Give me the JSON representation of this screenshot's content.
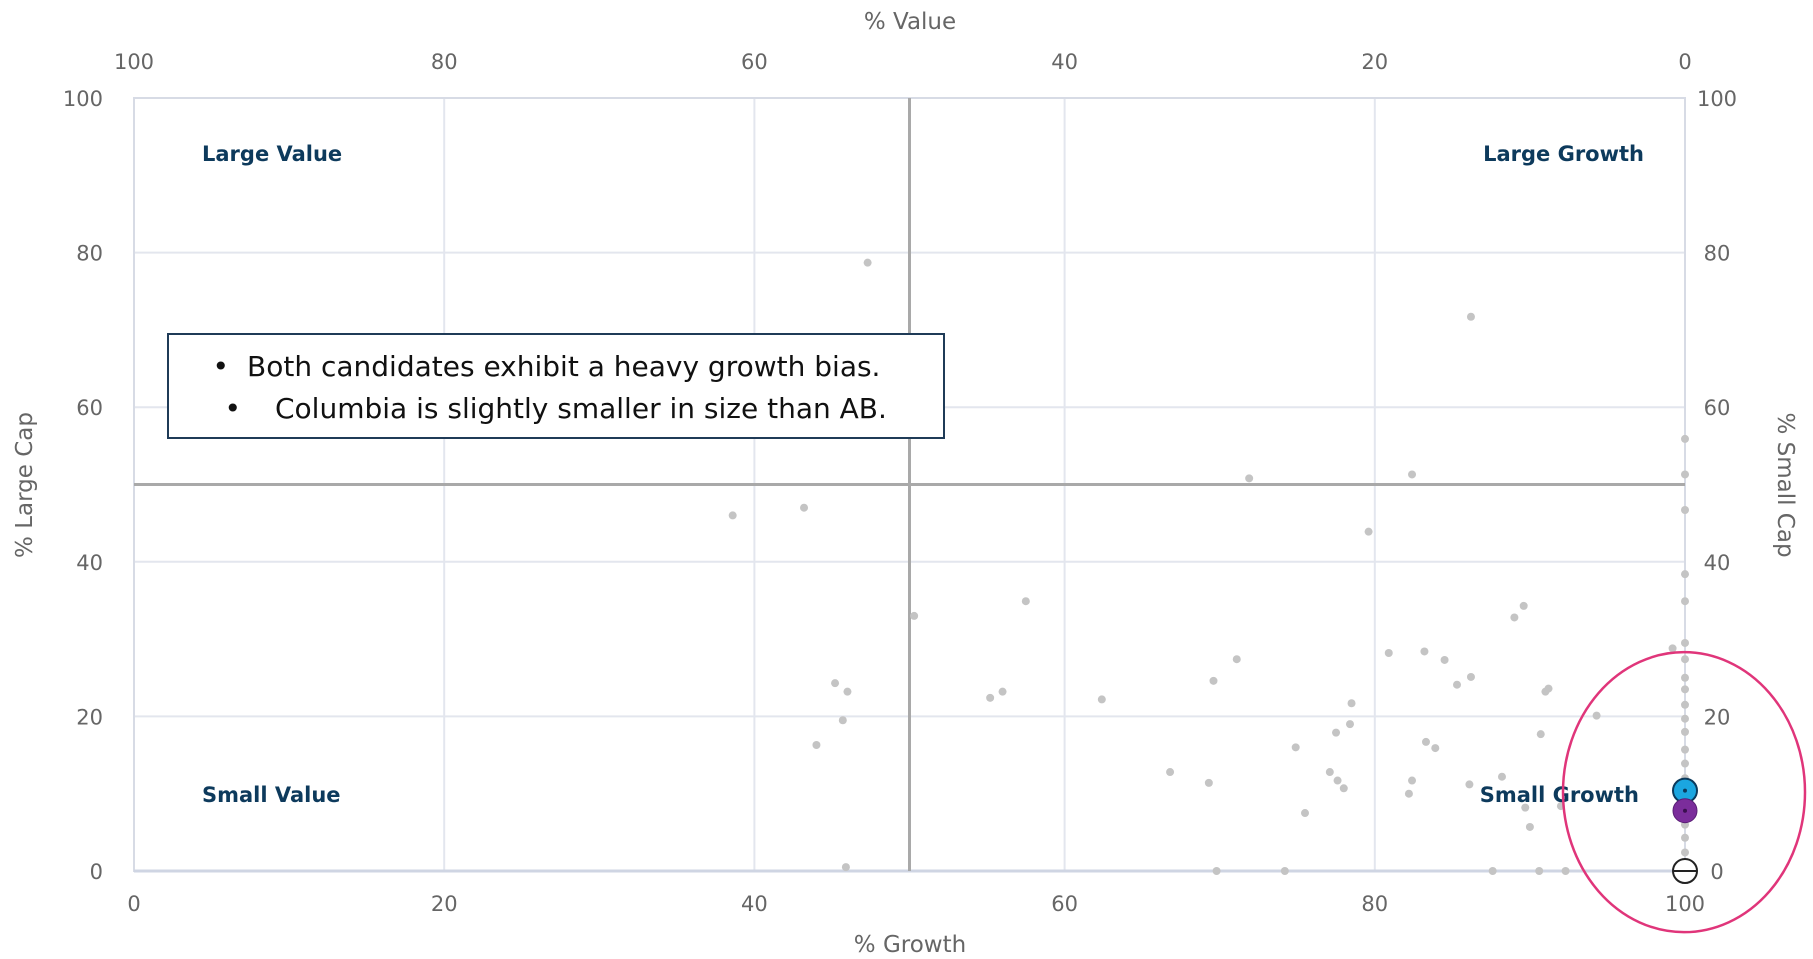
{
  "chart_data": {
    "type": "scatter",
    "xlabel_bottom": "% Growth",
    "xlabel_top": "% Value",
    "ylabel_left": "% Large Cap",
    "ylabel_right": "% Small Cap",
    "xlim": [
      0,
      100
    ],
    "ylim": [
      0,
      100
    ],
    "x_ticks": [
      "0",
      "20",
      "40",
      "60",
      "80",
      "100"
    ],
    "x_ticks_top": [
      "100",
      "80",
      "60",
      "40",
      "20",
      "0"
    ],
    "y_ticks": [
      "0",
      "20",
      "40",
      "60",
      "80",
      "100"
    ],
    "y_ticks_right": [
      "100",
      "80",
      "60",
      "40",
      "20",
      "0"
    ],
    "grid": true,
    "midlines": {
      "x": 50,
      "y": 50
    },
    "quadrant_labels": {
      "top_left": "Large Value",
      "top_right": "Large Growth",
      "bottom_left": "Small Value",
      "bottom_right": "Small Growth"
    },
    "series": [
      {
        "color": "#c4c4c4",
        "points": [
          [
            47.3,
            78.7
          ],
          [
            86.2,
            71.7
          ],
          [
            71.9,
            50.8
          ],
          [
            82.4,
            51.3
          ],
          [
            38.6,
            46.0
          ],
          [
            43.2,
            47.0
          ],
          [
            79.6,
            43.9
          ],
          [
            50.3,
            33.0
          ],
          [
            57.5,
            34.9
          ],
          [
            89.6,
            34.3
          ],
          [
            89.0,
            32.8
          ],
          [
            80.9,
            28.2
          ],
          [
            83.2,
            28.4
          ],
          [
            84.5,
            27.3
          ],
          [
            71.1,
            27.4
          ],
          [
            69.6,
            24.6
          ],
          [
            85.3,
            24.1
          ],
          [
            86.2,
            25.1
          ],
          [
            45.2,
            24.3
          ],
          [
            46.0,
            23.2
          ],
          [
            55.2,
            22.4
          ],
          [
            56.0,
            23.2
          ],
          [
            62.4,
            22.2
          ],
          [
            78.5,
            21.7
          ],
          [
            91.0,
            23.2
          ],
          [
            91.2,
            23.6
          ],
          [
            45.7,
            19.5
          ],
          [
            78.4,
            19.0
          ],
          [
            77.5,
            17.9
          ],
          [
            90.7,
            17.7
          ],
          [
            94.3,
            20.1
          ],
          [
            44.0,
            16.3
          ],
          [
            74.9,
            16.0
          ],
          [
            83.3,
            16.7
          ],
          [
            83.9,
            15.9
          ],
          [
            66.8,
            12.8
          ],
          [
            77.1,
            12.8
          ],
          [
            77.6,
            11.7
          ],
          [
            78.0,
            10.7
          ],
          [
            69.3,
            11.4
          ],
          [
            82.4,
            11.7
          ],
          [
            82.2,
            10.0
          ],
          [
            86.1,
            11.2
          ],
          [
            88.2,
            12.2
          ],
          [
            89.7,
            8.2
          ],
          [
            92.0,
            8.4
          ],
          [
            75.5,
            7.5
          ],
          [
            90.0,
            5.7
          ],
          [
            45.9,
            0.5
          ],
          [
            69.8,
            0
          ],
          [
            74.2,
            0
          ],
          [
            87.6,
            0
          ],
          [
            90.6,
            0
          ],
          [
            92.3,
            0
          ],
          [
            99.2,
            28.8
          ],
          [
            100,
            55.9
          ],
          [
            100,
            51.3
          ],
          [
            100,
            46.7
          ],
          [
            100,
            38.4
          ],
          [
            100,
            34.9
          ],
          [
            100,
            29.5
          ],
          [
            100,
            27.4
          ],
          [
            100,
            25.0
          ],
          [
            100,
            23.5
          ],
          [
            100,
            21.5
          ],
          [
            100,
            19.7
          ],
          [
            100,
            18.0
          ],
          [
            100,
            15.7
          ],
          [
            100,
            13.9
          ],
          [
            100,
            12.0
          ],
          [
            100,
            6.0
          ],
          [
            100,
            4.3
          ],
          [
            100,
            2.4
          ]
        ]
      },
      {
        "color": "#1ba6e0",
        "points": [
          [
            100,
            10.4
          ]
        ]
      },
      {
        "color": "#7b2d9b",
        "points": [
          [
            100,
            7.8
          ]
        ]
      },
      {
        "color": "#ffffff",
        "points": [
          [
            100,
            0
          ]
        ]
      }
    ],
    "annotations": [
      "Both candidates exhibit a heavy growth bias.",
      "Columbia is slightly smaller in size than AB."
    ],
    "highlight": {
      "shape": "ellipse",
      "color": "#e0357a",
      "around": [
        100,
        8
      ]
    }
  }
}
